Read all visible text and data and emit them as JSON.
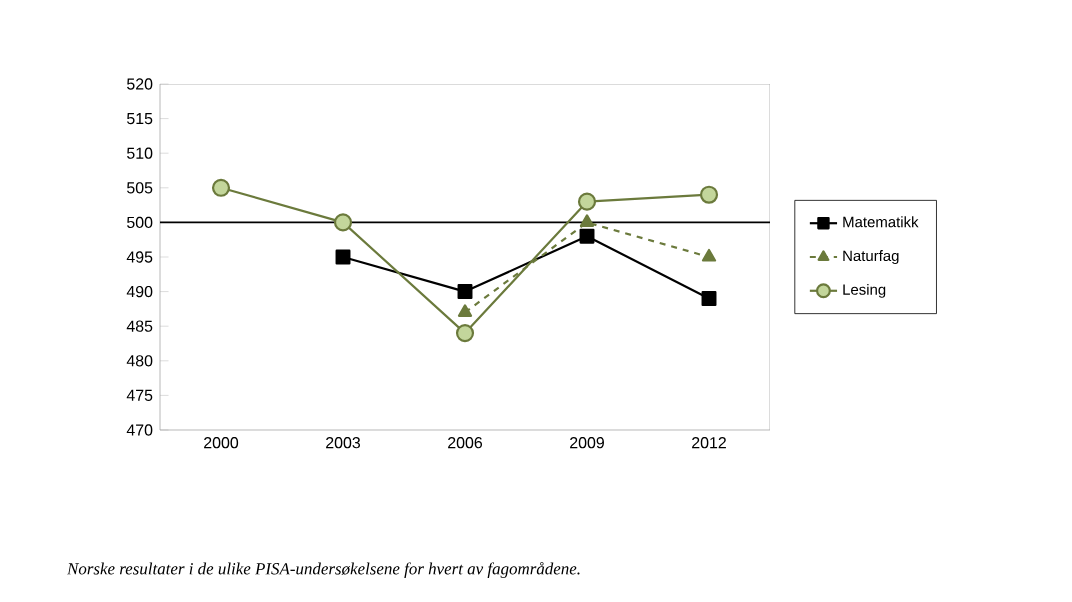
{
  "chart_data": {
    "type": "line",
    "categories": [
      "2000",
      "2003",
      "2006",
      "2009",
      "2012"
    ],
    "series": [
      {
        "name": "Matematikk",
        "color": "#000000",
        "marker": "square",
        "line_style": "solid",
        "values": [
          null,
          495,
          490,
          498,
          489
        ]
      },
      {
        "name": "Naturfag",
        "color": "#6b7a3c",
        "marker": "triangle",
        "line_style": "dashed",
        "values": [
          null,
          null,
          487,
          500,
          495
        ]
      },
      {
        "name": "Lesing",
        "color": "#6b7a3c",
        "marker": "circle",
        "line_style": "solid",
        "values": [
          505,
          500,
          484,
          503,
          504
        ]
      }
    ],
    "ylim": [
      470,
      520
    ],
    "yticks": [
      470,
      475,
      480,
      485,
      490,
      495,
      500,
      505,
      510,
      515,
      520
    ],
    "ref_lines": [
      {
        "axis": "y",
        "value": 500,
        "color": "#000000"
      }
    ],
    "legend": "right",
    "grid": false,
    "annotations": [
      "*Norske resultater i de ulike PISA-undersøkelsene for hvert av fagområdene.*"
    ]
  }
}
